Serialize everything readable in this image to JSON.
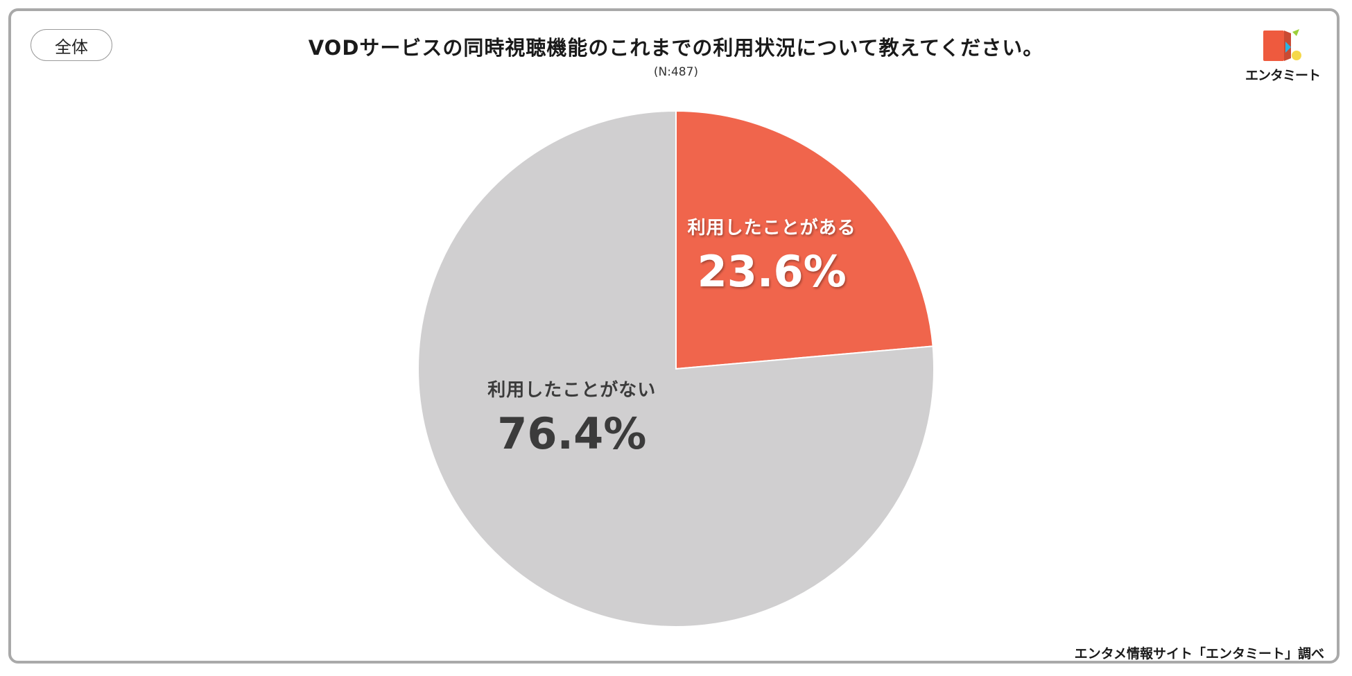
{
  "badge": "全体",
  "title": "VODサービスの同時視聴機能のこれまでの利用状況について教えてください。",
  "subtitle": "(N:487)",
  "logo": {
    "text": "エンタミート",
    "icon": "entameet-logo-icon",
    "colors": [
      "#ee5a3e",
      "#2bb3e3",
      "#f5d84a",
      "#9ccf3a"
    ]
  },
  "source": "エンタメ情報サイト「エンタミート」調べ",
  "chart_data": {
    "type": "pie",
    "title": "VODサービスの同時視聴機能のこれまでの利用状況について教えてください。",
    "subtitle": "(N:487)",
    "start_angle": "12 o'clock",
    "direction": "clockwise",
    "slices": [
      {
        "label": "利用したことがある",
        "value": 23.6,
        "display": "23.6%",
        "color": "#f0654c",
        "text_color": "#ffffff"
      },
      {
        "label": "利用したことがない",
        "value": 76.4,
        "display": "76.4%",
        "color": "#d0cfd0",
        "text_color": "#3b3b3b"
      }
    ]
  }
}
